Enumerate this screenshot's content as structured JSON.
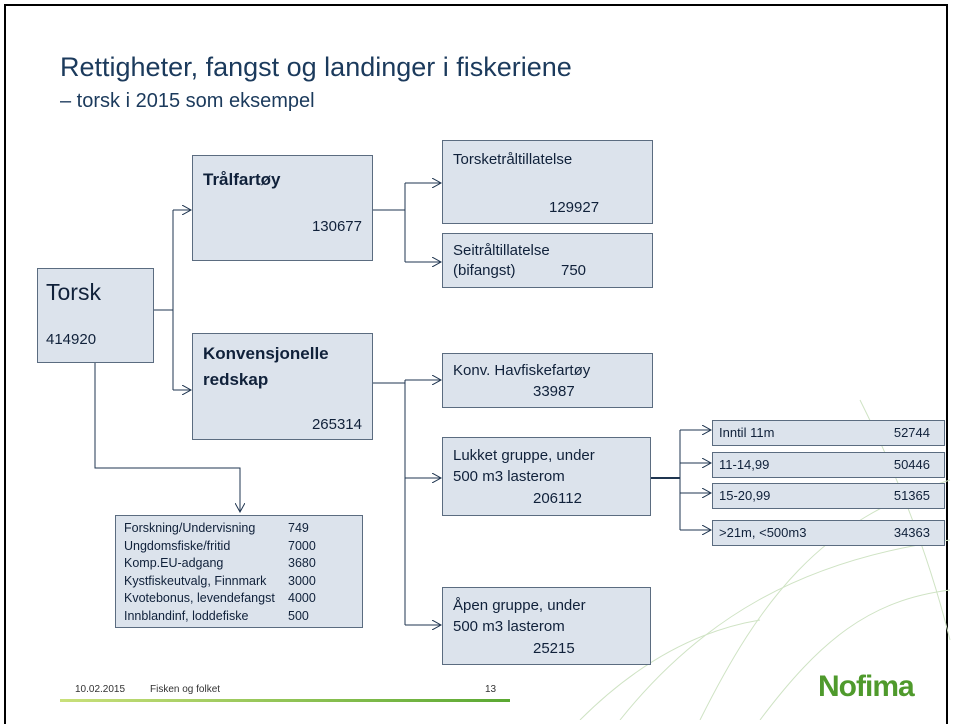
{
  "title": "Rettigheter, fangst og landinger i fiskeriene",
  "subtitle": "– torsk i 2015 som eksempel",
  "nodes": [
    {
      "label_lines": [
        "Torsk"
      ],
      "value": 414920
    },
    {
      "label_lines": [
        "Trålfartøy"
      ],
      "value": 130677
    },
    {
      "label_lines": [
        "Konvensjonelle",
        "redskap"
      ],
      "value": 265314
    },
    {
      "label_lines": [
        "Torsketråltillatelse"
      ],
      "value": 129927
    },
    {
      "label_lines": [
        "Seitråltillatelse",
        "(bifangst)"
      ],
      "value": 750
    },
    {
      "label_lines": [
        "Konv. Havfiskefartøy"
      ],
      "value": 33987
    },
    {
      "label_lines": [
        "Lukket gruppe, under",
        "500 m3 lasterom"
      ],
      "value": 206112
    },
    {
      "label_lines": [
        "Åpen gruppe, under",
        "500 m3 lasterom"
      ],
      "value": 25215
    },
    {
      "label_lines": [
        "Inntil 11m"
      ],
      "value": 52744
    },
    {
      "label_lines": [
        "11-14,99"
      ],
      "value": 50446
    },
    {
      "label_lines": [
        "15-20,99"
      ],
      "value": 51365
    },
    {
      "label_lines": [
        ">21m, <500m3"
      ],
      "value": 34363
    }
  ],
  "other_uses": {
    "rows": [
      [
        "Forskning/Undervisning",
        749
      ],
      [
        "Ungdomsfiske/fritid",
        7000
      ],
      [
        "Komp.EU-adgang",
        3680
      ],
      [
        "Kystfiskeutvalg, Finnmark",
        3000
      ],
      [
        "Kvotebonus, levendefangst",
        4000
      ],
      [
        "Innblandinf, loddefiske",
        500
      ]
    ]
  },
  "footer": {
    "date": "10.02.2015",
    "text": "Fisken og folket",
    "page": 13
  },
  "logo": "Nofima"
}
